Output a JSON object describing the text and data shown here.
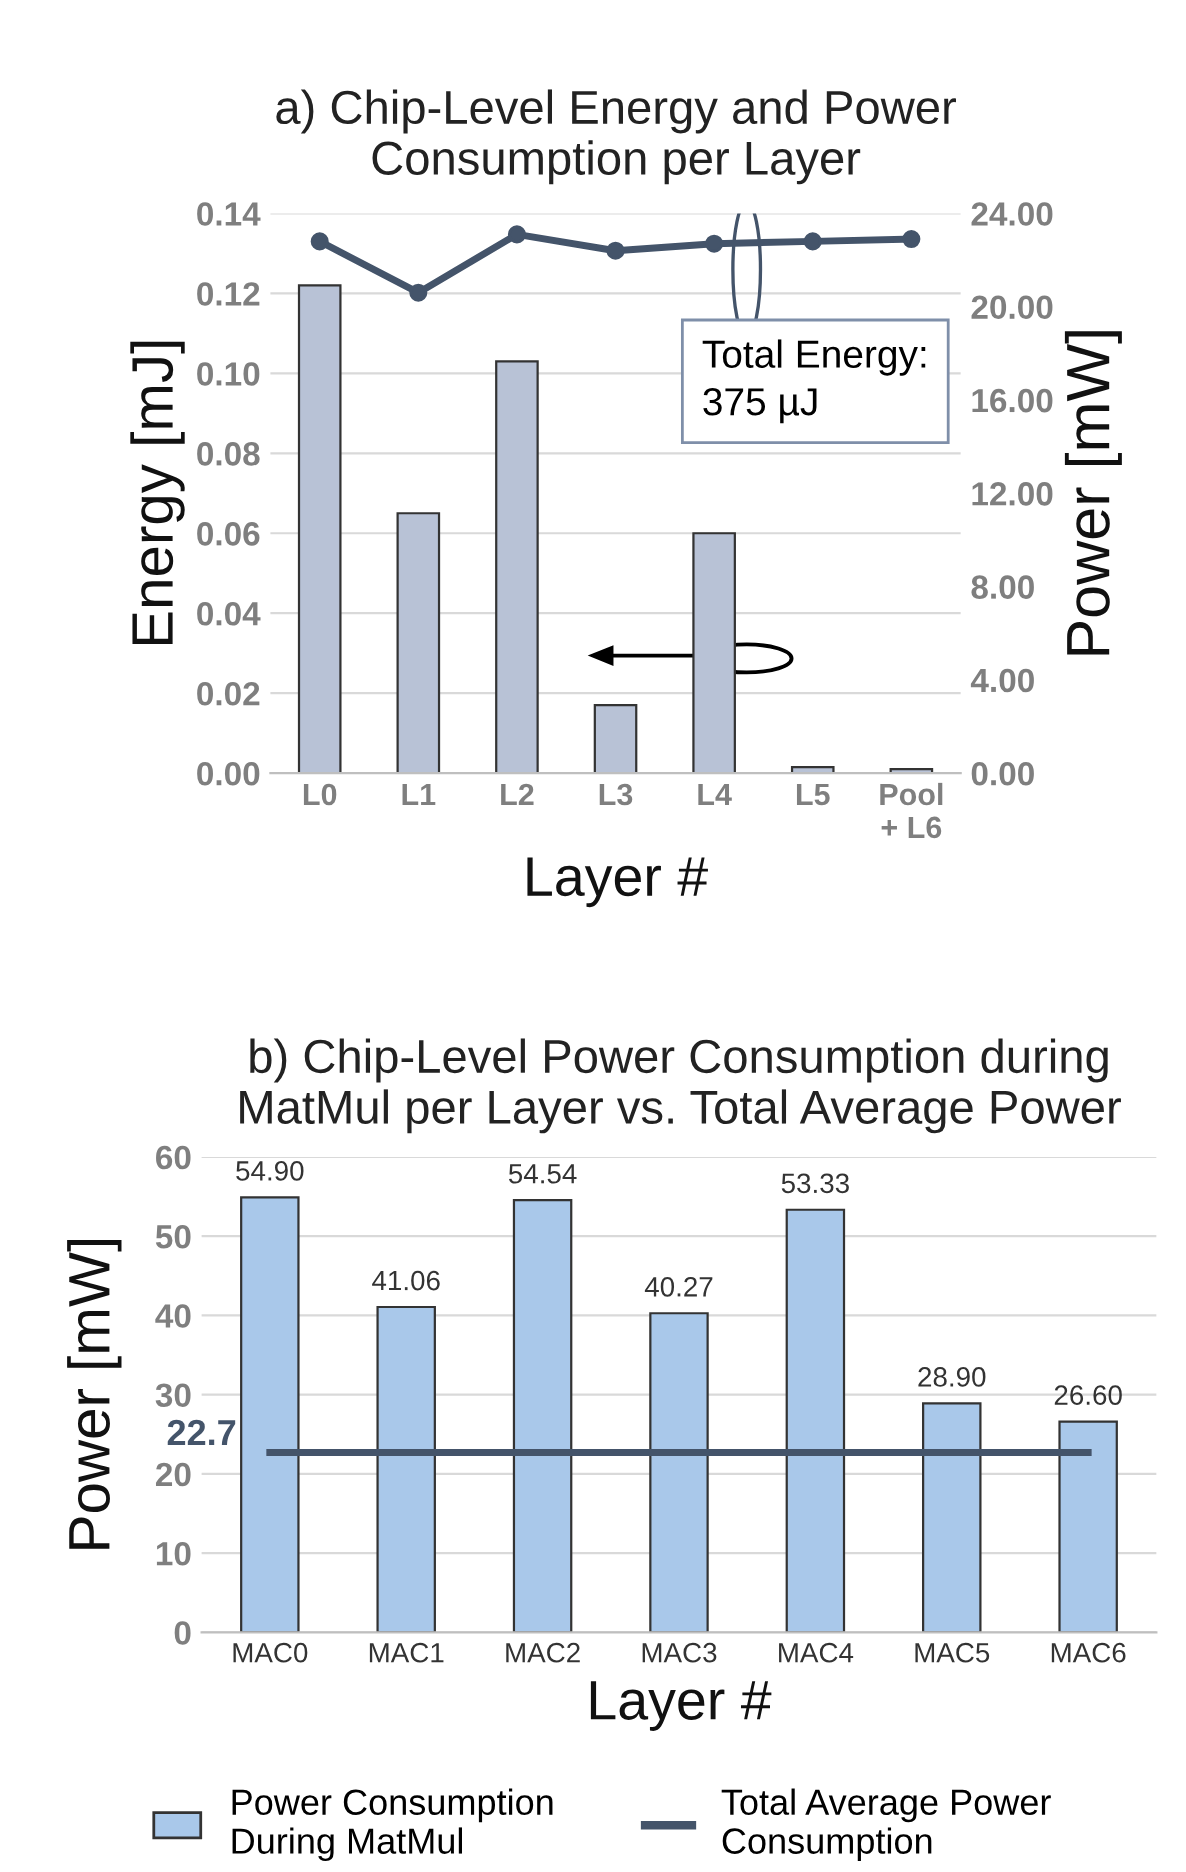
{
  "chart_data": [
    {
      "type": "bar",
      "title": "a) Chip-Level Energy and Power\nConsumption per Layer",
      "xlabel": "Layer #",
      "ylabel": "Energy [mJ]",
      "y2label": "Power [mW]",
      "categories": [
        "L0",
        "L1",
        "L2",
        "L3",
        "L4",
        "L5",
        "Pool\n+ L6"
      ],
      "series": [
        {
          "color": "#b8c2d6",
          "values": [
            0.122,
            0.065,
            0.103,
            0.017,
            0.06,
            0.0015,
            0.001
          ]
        },
        {
          "type": "line",
          "axis": "y2",
          "color": "#44546a",
          "marker": "circle",
          "values": [
            22.8,
            20.6,
            23.1,
            22.4,
            22.7,
            22.8,
            22.9
          ]
        }
      ],
      "ylim": [
        0,
        0.14
      ],
      "yticks": [
        {
          "value": 0,
          "label": "0.00"
        },
        {
          "value": 0.02,
          "label": "0.02"
        },
        {
          "value": 0.04,
          "label": "0.04"
        },
        {
          "value": 0.06,
          "label": "0.06"
        },
        {
          "value": 0.08,
          "label": "0.08"
        },
        {
          "value": 0.1,
          "label": "0.10"
        },
        {
          "value": 0.12,
          "label": "0.12"
        },
        {
          "value": 0.14,
          "label": "0.14"
        }
      ],
      "y2lim": [
        0,
        24
      ],
      "y2ticks": [
        {
          "value": 0,
          "label": "0.00"
        },
        {
          "value": 4,
          "label": "4.00"
        },
        {
          "value": 8,
          "label": "8.00"
        },
        {
          "value": 12,
          "label": "12.00"
        },
        {
          "value": 16,
          "label": "16.00"
        },
        {
          "value": 20,
          "label": "20.00"
        },
        {
          "value": 24,
          "label": "24.00"
        }
      ],
      "grid": "y",
      "annotations": [
        "Total Energy:\n375 µJ"
      ]
    },
    {
      "type": "bar",
      "title": "b) Chip-Level Power Consumption during\nMatMul per Layer vs. Total Average Power",
      "xlabel": "Layer #",
      "ylabel": "Power [mW]",
      "categories": [
        "MAC0",
        "MAC1",
        "MAC2",
        "MAC3",
        "MAC4",
        "MAC5",
        "MAC6"
      ],
      "series": [
        {
          "name": "Power Consumption\nDuring MatMul",
          "color": "#a9c8ea",
          "values": [
            54.9,
            41.06,
            54.54,
            40.27,
            53.33,
            28.9,
            26.6
          ],
          "value_labels": [
            "54.90",
            "41.06",
            "54.54",
            "40.27",
            "53.33",
            "28.90",
            "26.60"
          ]
        },
        {
          "type": "line",
          "name": "Total Average Power\nConsumption",
          "color": "#44546a",
          "values": [
            22.7,
            22.7,
            22.7,
            22.7,
            22.7,
            22.7,
            22.7
          ]
        }
      ],
      "ylim": [
        0,
        60
      ],
      "yticks": [
        0,
        10,
        20,
        30,
        40,
        50,
        60
      ],
      "grid": "y",
      "legend": "bottom",
      "annotations": [
        "22.7"
      ]
    }
  ]
}
